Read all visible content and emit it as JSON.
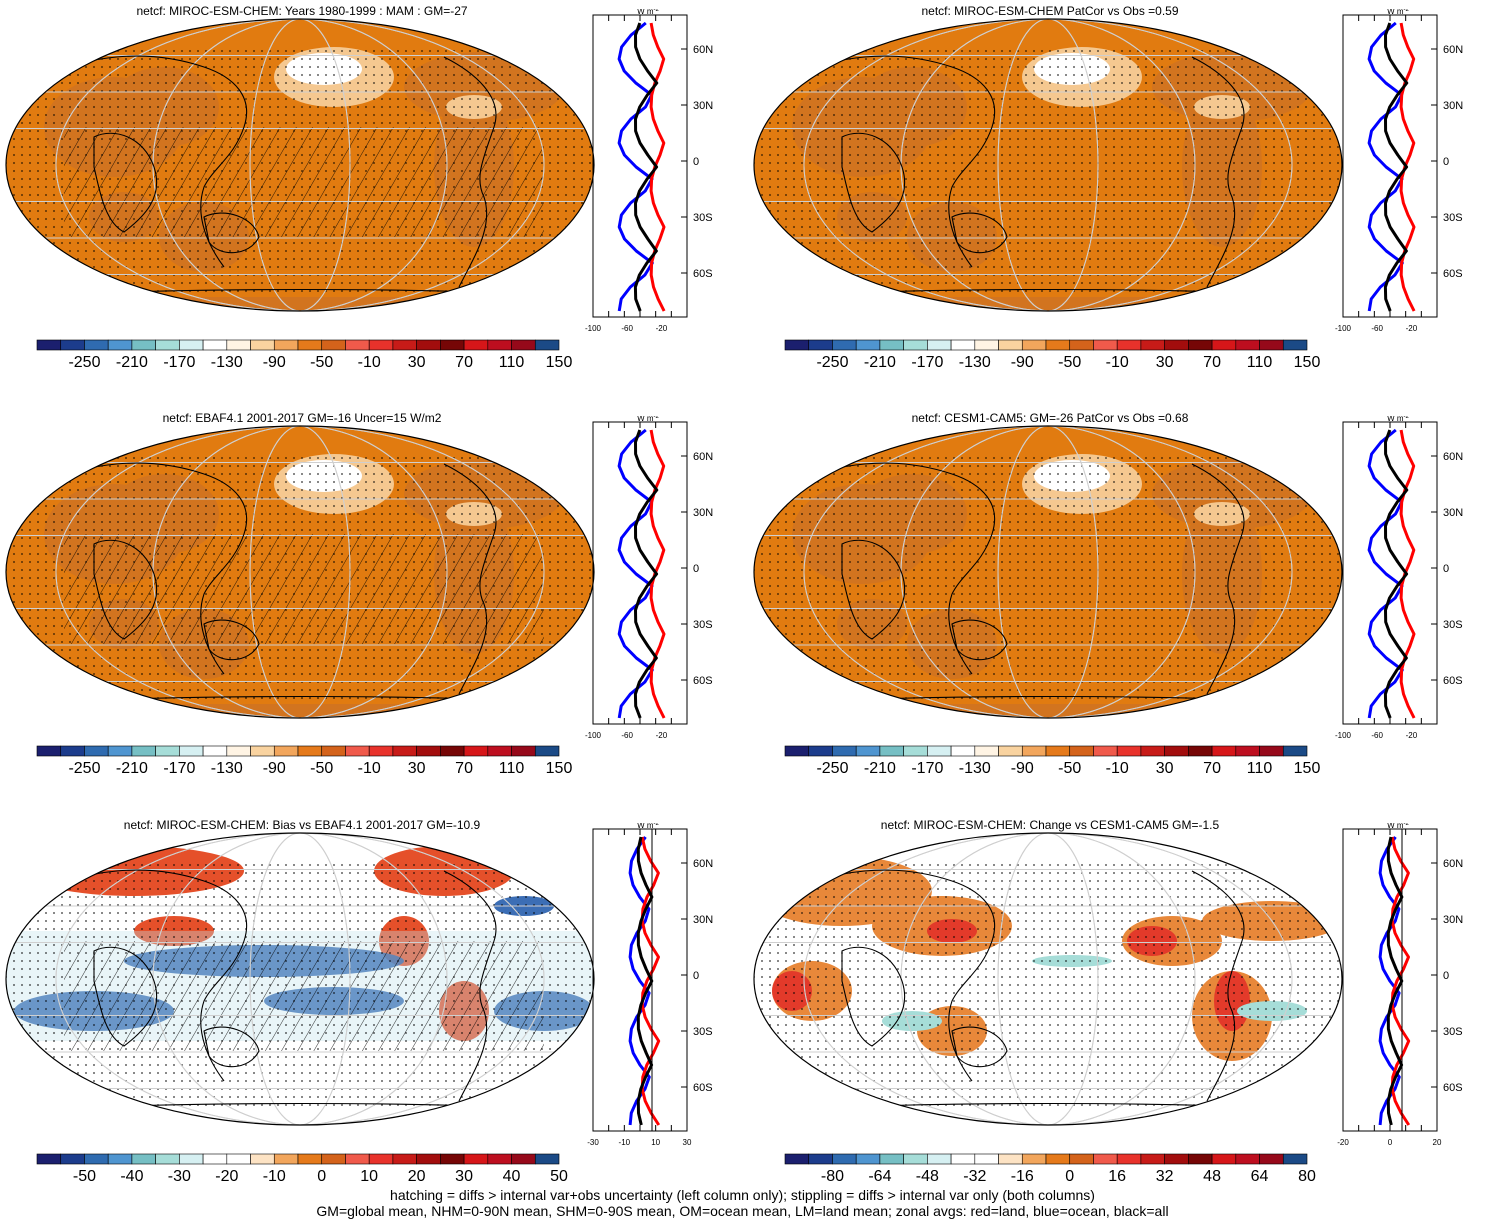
{
  "colors": {
    "land": "#d2741f",
    "ocean": "#e17b10",
    "pale": "#f5c890",
    "white": "#ffffff",
    "red": "#e83a3a",
    "blue": "#1a55a8",
    "zonal_red": "#ff0000",
    "zonal_blue": "#0000ff",
    "zonal_black": "#000000"
  },
  "colorbar_abs": [
    "#1b1f6e",
    "#1c3c8c",
    "#2f6bb0",
    "#4f95d0",
    "#76bfc4",
    "#a6ddd8",
    "#d6f0f2",
    "#ffffff",
    "#fff4e4",
    "#f9d3a0",
    "#f2a65c",
    "#e57a1b",
    "#d4631b",
    "#f05a4b",
    "#e8322b",
    "#c71b18",
    "#a20d0d",
    "#760606",
    "#d61619",
    "#bd0e1f",
    "#96091a",
    "#1b4a86"
  ],
  "colorbar_bias": [
    "#1b1f6e",
    "#1c3c8c",
    "#2f6bb0",
    "#4f95d0",
    "#76bfc4",
    "#a6ddd8",
    "#d6f0f2",
    "#ffffff",
    "#ffffff",
    "#fde3c4",
    "#f2a65c",
    "#e57a1b",
    "#d4631b",
    "#f05a4b",
    "#e8322b",
    "#c71b18",
    "#a20d0d",
    "#760606",
    "#d61619",
    "#bd0e1f",
    "#96091a",
    "#1b4a86"
  ],
  "panels": [
    {
      "title": "netcf: MIROC-ESM-CHEM: Years 1980-1999 : MAM : GM=-27",
      "cbar_type": "abs",
      "cbar_labels": [
        "-250",
        "-210",
        "-170",
        "-130",
        "-90",
        "-50",
        "-10",
        "30",
        "70",
        "110",
        "150"
      ],
      "zonal_ticks_x": [
        "-100",
        "-60",
        "-20"
      ],
      "zonal_ticks_y": [
        "60N",
        "30N",
        "0",
        "30S",
        "60S"
      ],
      "zonal_unit": "W m",
      "zonal_unit_sup": "-2"
    },
    {
      "title": "netcf: MIROC-ESM-CHEM PatCor vs Obs =0.59",
      "cbar_type": "abs",
      "cbar_labels": [
        "-250",
        "-210",
        "-170",
        "-130",
        "-90",
        "-50",
        "-10",
        "30",
        "70",
        "110",
        "150"
      ],
      "zonal_ticks_x": [
        "-100",
        "-60",
        "-20"
      ],
      "zonal_ticks_y": [
        "60N",
        "30N",
        "0",
        "30S",
        "60S"
      ],
      "zonal_unit": "W m",
      "zonal_unit_sup": "-2"
    },
    {
      "title": "netcf: EBAF4.1 2001-2017 GM=-16 Uncer=15 W/m2",
      "cbar_type": "abs",
      "cbar_labels": [
        "-250",
        "-210",
        "-170",
        "-130",
        "-90",
        "-50",
        "-10",
        "30",
        "70",
        "110",
        "150"
      ],
      "zonal_ticks_x": [
        "-100",
        "-60",
        "-20"
      ],
      "zonal_ticks_y": [
        "60N",
        "30N",
        "0",
        "30S",
        "60S"
      ],
      "zonal_unit": "W m",
      "zonal_unit_sup": "-2"
    },
    {
      "title": "netcf: CESM1-CAM5: GM=-26 PatCor vs Obs =0.68",
      "cbar_type": "abs",
      "cbar_labels": [
        "-250",
        "-210",
        "-170",
        "-130",
        "-90",
        "-50",
        "-10",
        "30",
        "70",
        "110",
        "150"
      ],
      "zonal_ticks_x": [
        "-100",
        "-60",
        "-20"
      ],
      "zonal_ticks_y": [
        "60N",
        "30N",
        "0",
        "30S",
        "60S"
      ],
      "zonal_unit": "W m",
      "zonal_unit_sup": "-2"
    },
    {
      "title": "netcf: MIROC-ESM-CHEM: Bias vs EBAF4.1 2001-2017 GM=-10.9",
      "cbar_type": "bias",
      "cbar_labels": [
        "-50",
        "-40",
        "-30",
        "-20",
        "-10",
        "0",
        "10",
        "20",
        "30",
        "40",
        "50"
      ],
      "zonal_ticks_x": [
        "-30",
        "-10",
        "10",
        "30"
      ],
      "zonal_ticks_y": [
        "60N",
        "30N",
        "0",
        "30S",
        "60S"
      ],
      "zonal_unit": "W m",
      "zonal_unit_sup": "-2"
    },
    {
      "title": "netcf: MIROC-ESM-CHEM: Change vs CESM1-CAM5 GM=-1.5",
      "cbar_type": "bias",
      "cbar_labels": [
        "-80",
        "-64",
        "-48",
        "-32",
        "-16",
        "0",
        "16",
        "32",
        "48",
        "64",
        "80"
      ],
      "zonal_ticks_x": [
        "-20",
        "0",
        "20"
      ],
      "zonal_ticks_y": [
        "60N",
        "30N",
        "0",
        "30S",
        "60S"
      ],
      "zonal_unit": "W m",
      "zonal_unit_sup": "-2"
    }
  ],
  "footer": {
    "line1": "hatching = diffs > internal var+obs uncertainty (left column only); stippling = diffs > internal var only (both columns)",
    "line2": "GM=global mean, NHM=0-90N mean, SHM=0-90S mean, OM=ocean mean, LM=land mean; zonal avgs: red=land, blue=ocean, black=all"
  }
}
